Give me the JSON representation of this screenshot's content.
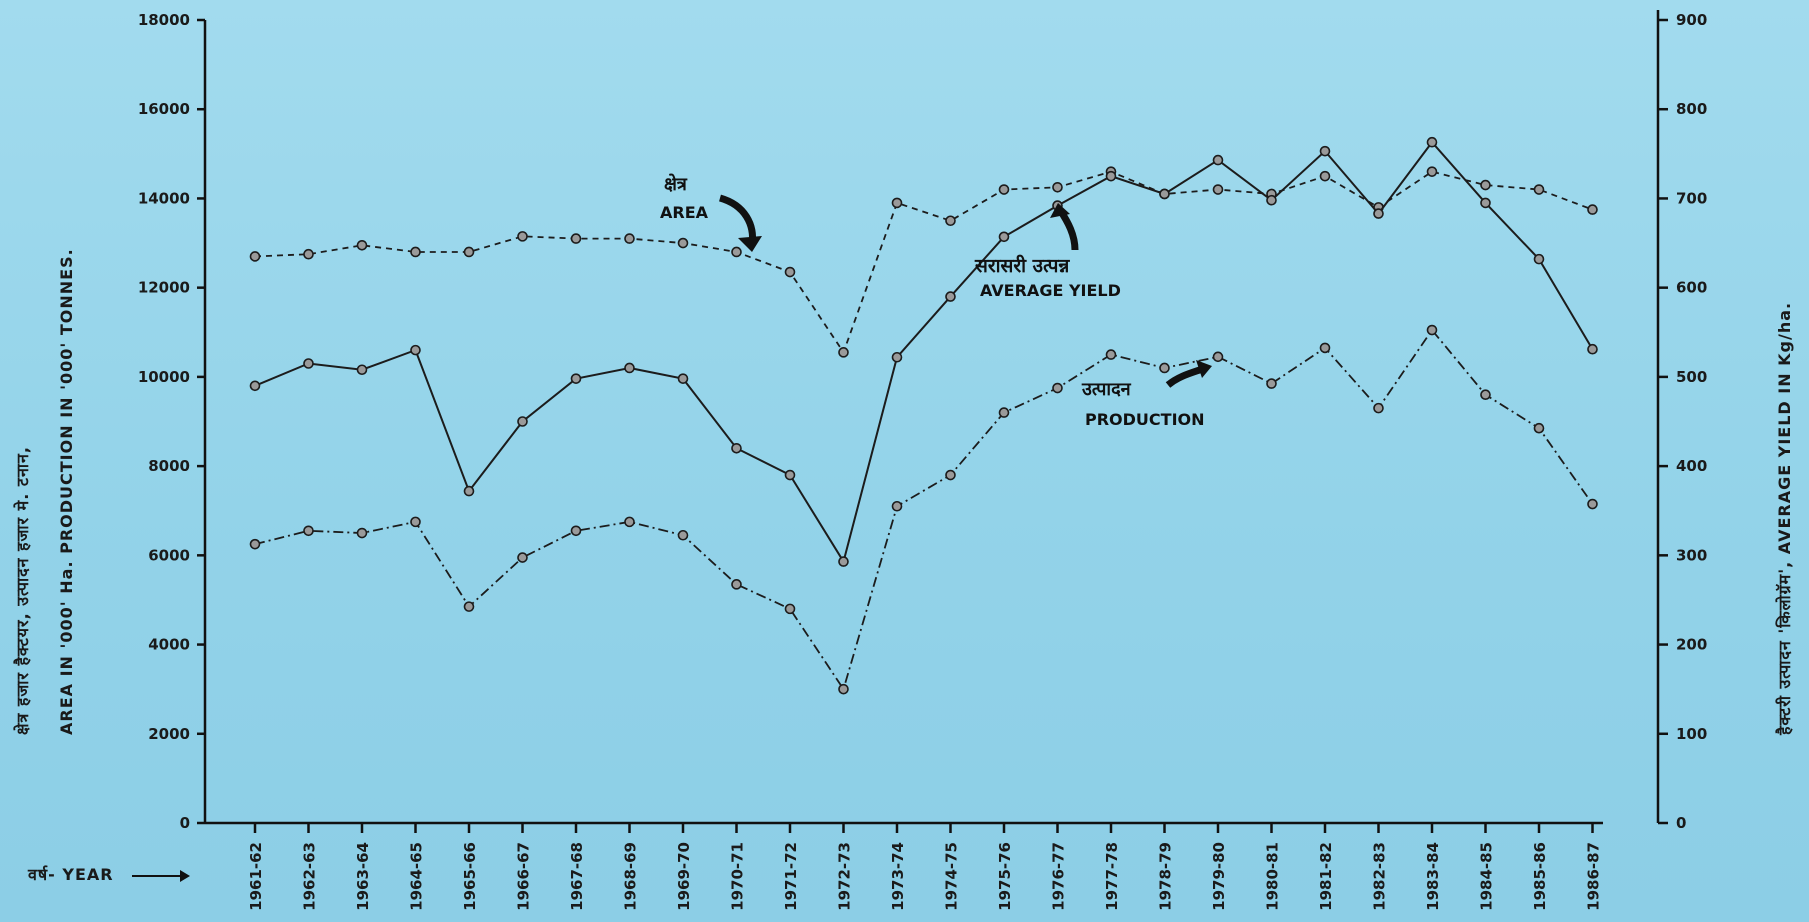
{
  "chart_data": {
    "type": "line",
    "ylabel_left_hindi": "क्षेत्र हजार हैक्टयर,   उत्पादन हजार मे. टनान,",
    "ylabel_left": "AREA IN '000' Ha.     PRODUCTION IN '000' TONNES.",
    "ylabel_right": "हैक्टरी उत्पादन 'किलोग्रॅम',   AVERAGE YIELD IN Kg/ha.",
    "xlabel": "वर्ष- YEAR",
    "ylim_left": [
      0,
      18000
    ],
    "yticks_left": [
      "0",
      "2000",
      "4000",
      "6000",
      "8000",
      "10000",
      "12000",
      "14000",
      "16000",
      "18000"
    ],
    "ylim_right": [
      0,
      900
    ],
    "yticks_right": [
      "0",
      "100",
      "200",
      "300",
      "400",
      "500",
      "600",
      "700",
      "800",
      "900"
    ],
    "grid": false,
    "categories": [
      "1961-62",
      "1962-63",
      "1963-64",
      "1964-65",
      "1965-66",
      "1966-67",
      "1967-68",
      "1968-69",
      "1969-70",
      "1970-71",
      "1971-72",
      "1972-73",
      "1973-74",
      "1974-75",
      "1975-76",
      "1976-77",
      "1977-78",
      "1978-79",
      "1979-80",
      "1980-81",
      "1981-82",
      "1982-83",
      "1983-84",
      "1984-85",
      "1985-86",
      "1986-87"
    ],
    "series": [
      {
        "name": "AREA",
        "axis": "left",
        "style": "dashed",
        "values": [
          12700,
          12750,
          12950,
          12800,
          12800,
          13150,
          13100,
          13100,
          13000,
          12800,
          12350,
          10550,
          13900,
          13500,
          14200,
          14250,
          14600,
          14100,
          14200,
          14100,
          14500,
          13800,
          14600,
          14300,
          14200,
          13750
        ]
      },
      {
        "name": "AVERAGE YIELD",
        "axis": "right",
        "style": "solid",
        "values": [
          490,
          515,
          508,
          530,
          372,
          450,
          498,
          510,
          498,
          420,
          390,
          293,
          522,
          590,
          657,
          692,
          725,
          705,
          743,
          698,
          753,
          683,
          763,
          695,
          632,
          531
        ]
      },
      {
        "name": "PRODUCTION",
        "axis": "left",
        "style": "dashdot",
        "values": [
          6250,
          6550,
          6500,
          6750,
          4850,
          5950,
          6550,
          6750,
          6450,
          5350,
          4800,
          3000,
          7100,
          7800,
          9200,
          9750,
          10500,
          10200,
          10450,
          9850,
          10650,
          9300,
          11050,
          9600,
          8850,
          7150
        ]
      }
    ],
    "annotations": {
      "area_hindi": "क्षेत्र",
      "area": "AREA",
      "yield_hindi": "सरासरी उत्पन्न",
      "yield": "AVERAGE YIELD",
      "production_hindi": "उत्पादन",
      "production": "PRODUCTION"
    }
  }
}
